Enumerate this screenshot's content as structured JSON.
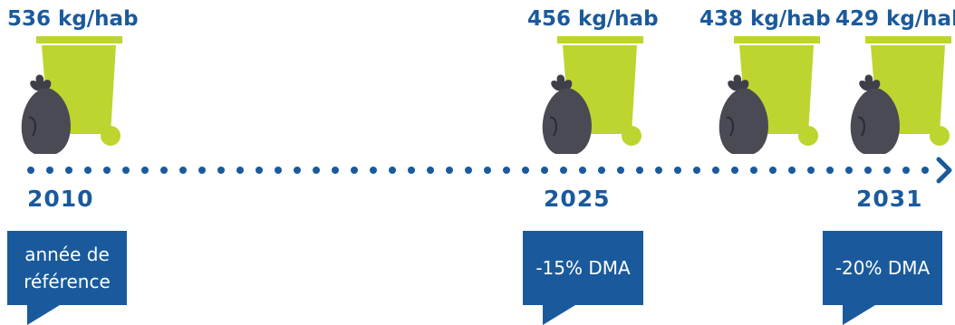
{
  "milestones": [
    {
      "amount": "536 kg/hab",
      "year": "2010",
      "note": "année de référence"
    },
    {
      "amount": "456 kg/hab",
      "year": "2025",
      "note": "-15% DMA"
    },
    {
      "amount": "438 kg/hab",
      "year": "",
      "note": ""
    },
    {
      "amount": "429 kg/hab",
      "year": "2031",
      "note": "-20% DMA"
    }
  ],
  "colors": {
    "primary_blue": "#1a5a9c",
    "bin_green": "#bdd52e",
    "bag_dark": "#4a4a55"
  },
  "icons": [
    "wheelie-bin-icon",
    "trash-bag-icon",
    "chevron-right-icon"
  ]
}
